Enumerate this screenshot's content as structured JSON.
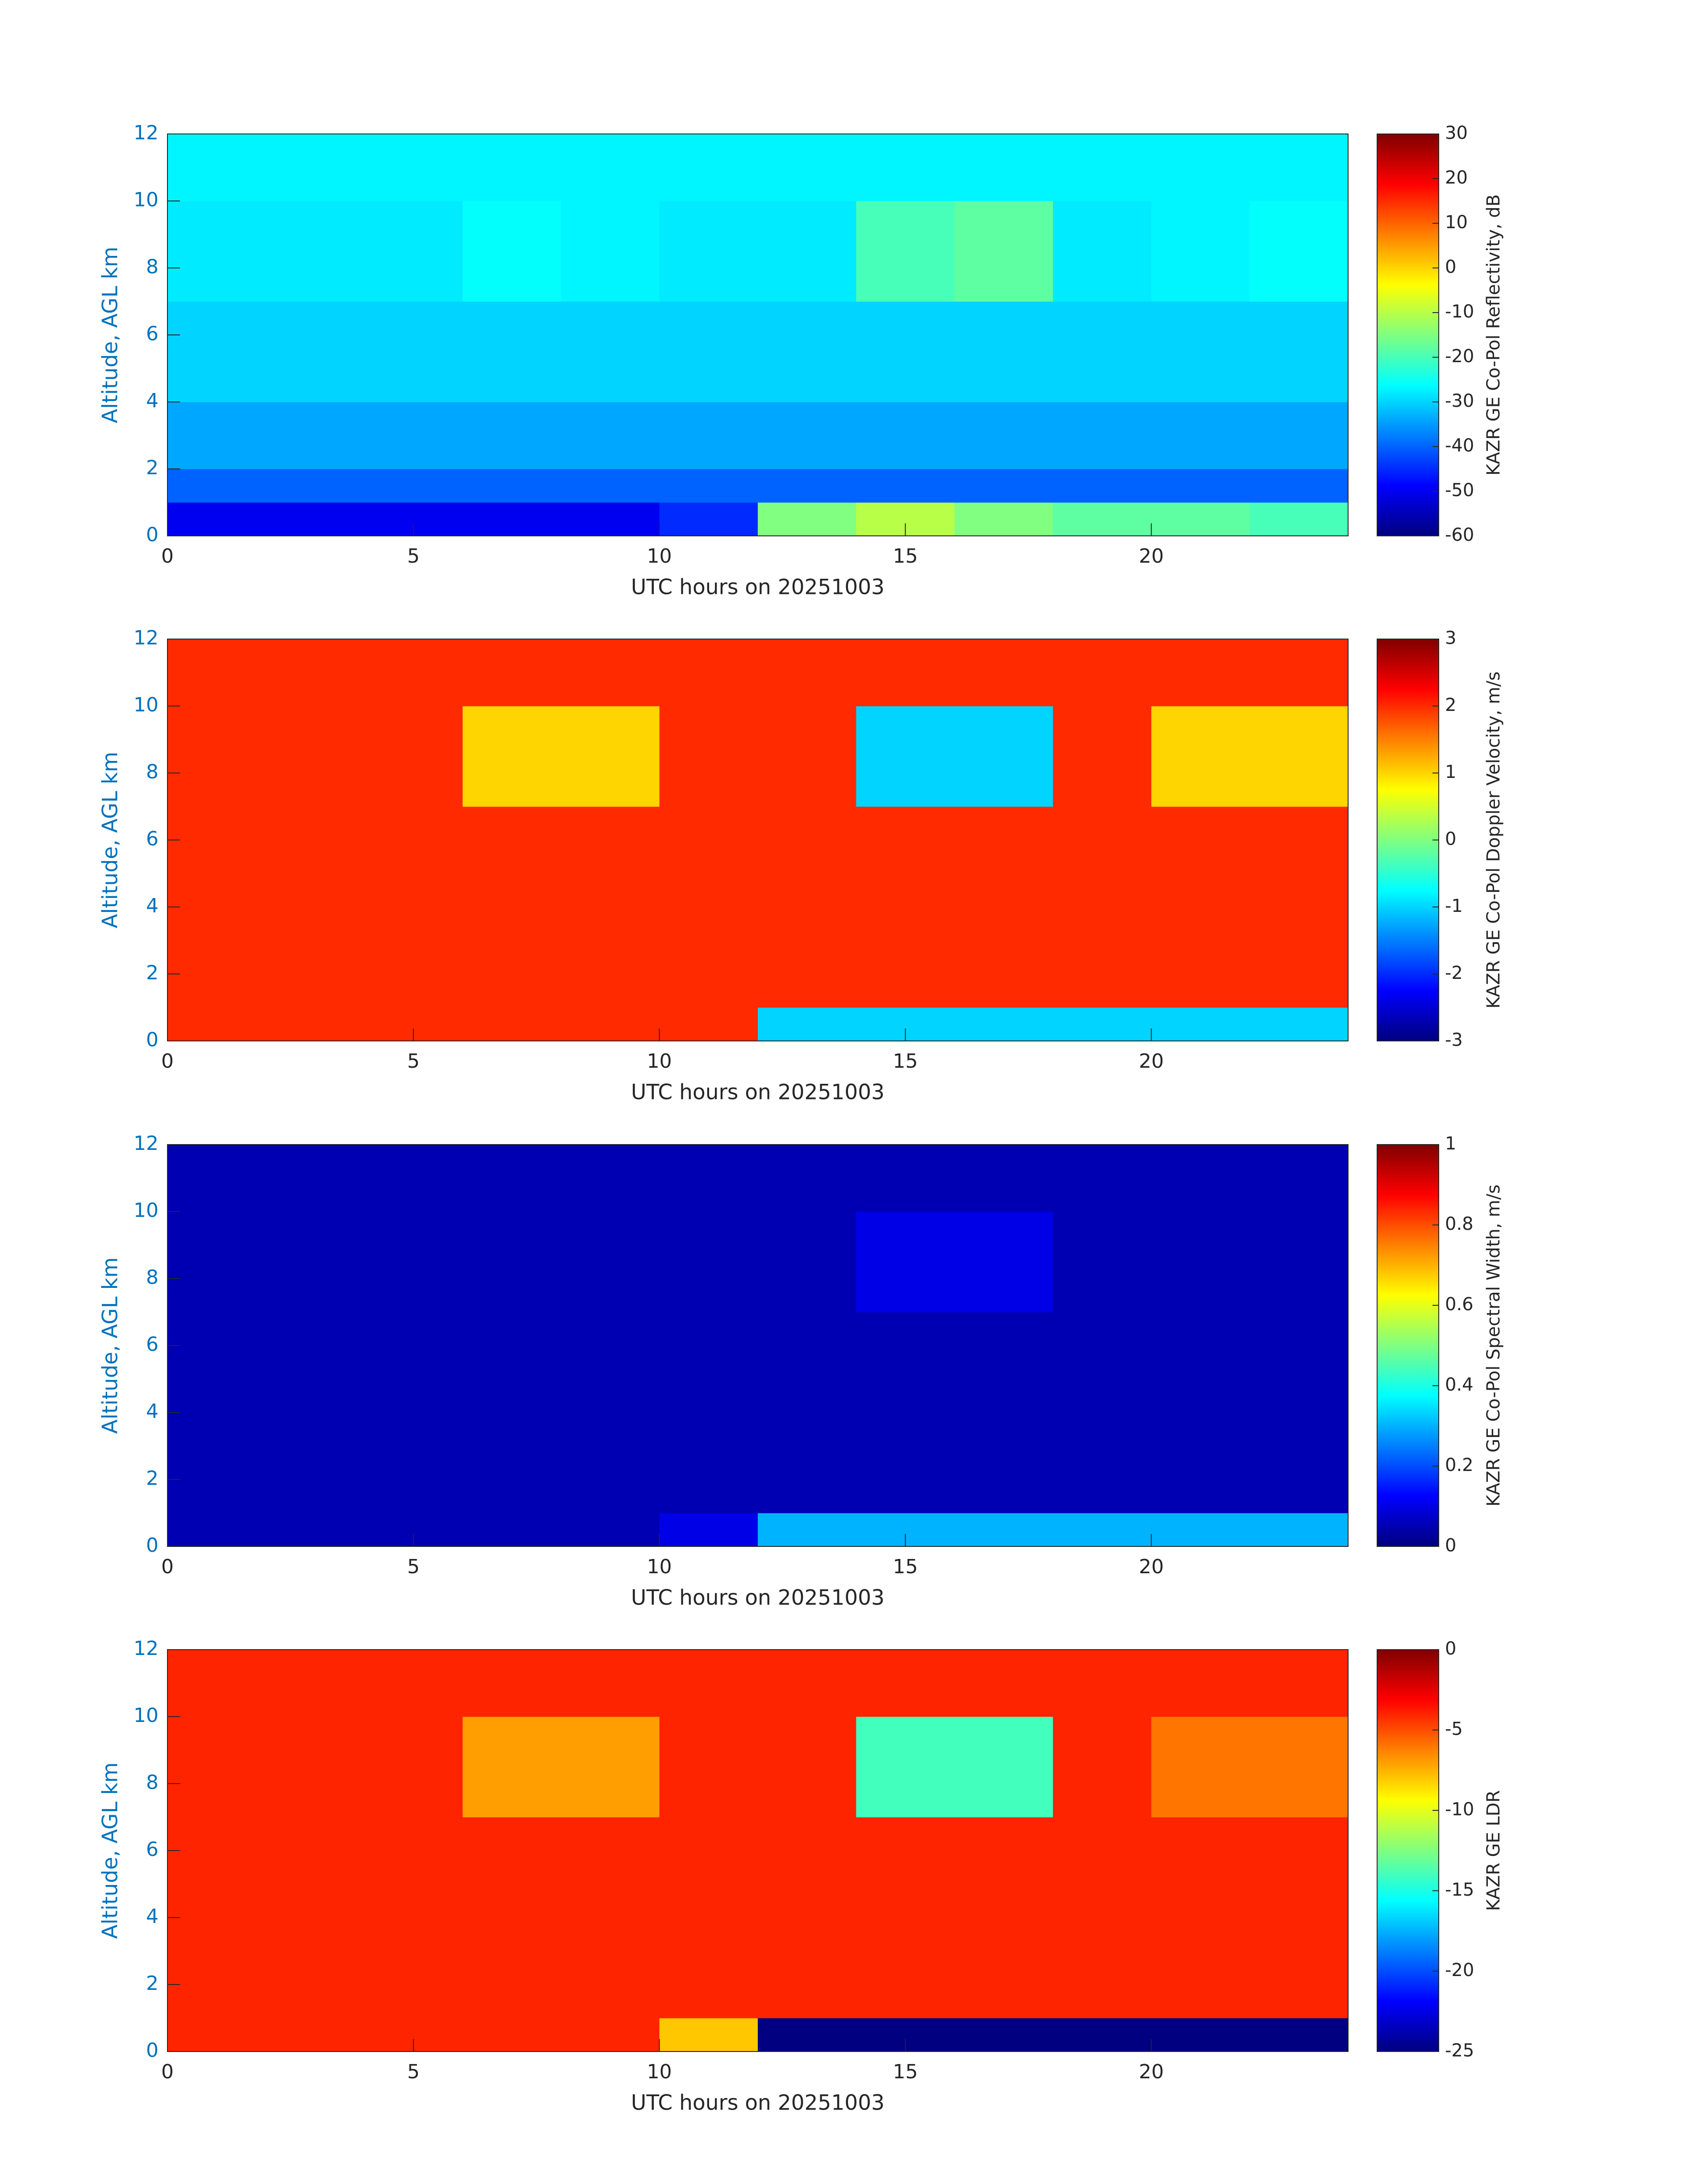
{
  "chart_data": [
    {
      "type": "heatmap",
      "colormap": "jet",
      "xlabel": "UTC hours on 20251003",
      "ylabel": "Altitude, AGL km",
      "colorbar_label": "KAZR GE Co-Pol Reflectivity, dB",
      "xlim": [
        0,
        24
      ],
      "xticks": [
        0,
        5,
        10,
        15,
        20
      ],
      "ylim": [
        0,
        12
      ],
      "yticks": [
        0,
        2,
        4,
        6,
        8,
        10,
        12
      ],
      "zlim": [
        -60,
        30
      ],
      "zticks": [
        -60,
        -50,
        -40,
        -30,
        -20,
        -10,
        0,
        10,
        20,
        30
      ],
      "x_bins": [
        0,
        2,
        4,
        6,
        8,
        10,
        12,
        14,
        16,
        18,
        20,
        22,
        24
      ],
      "y_bins": [
        0,
        1,
        2,
        4,
        7,
        10,
        12
      ],
      "values": [
        [
          -50,
          -50,
          -50,
          -50,
          -50,
          -45,
          -15,
          -10,
          -15,
          -18,
          -18,
          -20
        ],
        [
          -40,
          -40,
          -40,
          -40,
          -40,
          -40,
          -40,
          -40,
          -40,
          -40,
          -40,
          -40
        ],
        [
          -34,
          -34,
          -34,
          -34,
          -34,
          -34,
          -34,
          -34,
          -34,
          -34,
          -34,
          -34
        ],
        [
          -30,
          -30,
          -30,
          -30,
          -30,
          -30,
          -30,
          -30,
          -30,
          -30,
          -30,
          -30
        ],
        [
          -28,
          -28,
          -28,
          -26,
          -27,
          -28,
          -28,
          -20,
          -18,
          -28,
          -27,
          -26
        ],
        [
          -27,
          -27,
          -27,
          -27,
          -27,
          -27,
          -27,
          -27,
          -27,
          -27,
          -27,
          -27
        ]
      ]
    },
    {
      "type": "heatmap",
      "colormap": "jet",
      "xlabel": "UTC hours on 20251003",
      "ylabel": "Altitude, AGL km",
      "colorbar_label": "KAZR GE Co-Pol Doppler Velocity, m/s",
      "xlim": [
        0,
        24
      ],
      "xticks": [
        0,
        5,
        10,
        15,
        20
      ],
      "ylim": [
        0,
        12
      ],
      "yticks": [
        0,
        2,
        4,
        6,
        8,
        10,
        12
      ],
      "zlim": [
        -3,
        3
      ],
      "zticks": [
        -3,
        -2,
        -1,
        0,
        1,
        2,
        3
      ],
      "x_bins": [
        0,
        2,
        4,
        6,
        8,
        10,
        12,
        14,
        16,
        18,
        20,
        22,
        24
      ],
      "y_bins": [
        0,
        1,
        2,
        4,
        7,
        10,
        12
      ],
      "values": [
        [
          2,
          2,
          2,
          2,
          2,
          2,
          -1,
          -1,
          -1,
          -1,
          -1,
          -1
        ],
        [
          2,
          2,
          2,
          2,
          2,
          2,
          2,
          2,
          2,
          2,
          2,
          2
        ],
        [
          2,
          2,
          2,
          2,
          2,
          2,
          2,
          2,
          2,
          2,
          2,
          2
        ],
        [
          2,
          2,
          2,
          2,
          2,
          2,
          2,
          2,
          2,
          2,
          2,
          2
        ],
        [
          2,
          2,
          2,
          1,
          1,
          2,
          2,
          -1,
          -1,
          2,
          1,
          1
        ],
        [
          2,
          2,
          2,
          2,
          2,
          2,
          2,
          2,
          2,
          2,
          2,
          2
        ]
      ]
    },
    {
      "type": "heatmap",
      "colormap": "jet",
      "xlabel": "UTC hours on 20251003",
      "ylabel": "Altitude, AGL km",
      "colorbar_label": "KAZR GE Co-Pol Spectral Width, m/s",
      "xlim": [
        0,
        24
      ],
      "xticks": [
        0,
        5,
        10,
        15,
        20
      ],
      "ylim": [
        0,
        12
      ],
      "yticks": [
        0,
        2,
        4,
        6,
        8,
        10,
        12
      ],
      "zlim": [
        0,
        1
      ],
      "zticks": [
        0,
        0.2,
        0.4,
        0.6,
        0.8,
        1
      ],
      "x_bins": [
        0,
        2,
        4,
        6,
        8,
        10,
        12,
        14,
        16,
        18,
        20,
        22,
        24
      ],
      "y_bins": [
        0,
        1,
        2,
        4,
        7,
        10,
        12
      ],
      "values": [
        [
          0.05,
          0.05,
          0.05,
          0.05,
          0.05,
          0.1,
          0.3,
          0.3,
          0.3,
          0.3,
          0.3,
          0.3
        ],
        [
          0.05,
          0.05,
          0.05,
          0.05,
          0.05,
          0.05,
          0.05,
          0.05,
          0.05,
          0.05,
          0.05,
          0.05
        ],
        [
          0.05,
          0.05,
          0.05,
          0.05,
          0.05,
          0.05,
          0.05,
          0.05,
          0.05,
          0.05,
          0.05,
          0.05
        ],
        [
          0.05,
          0.05,
          0.05,
          0.05,
          0.05,
          0.05,
          0.05,
          0.05,
          0.05,
          0.05,
          0.05,
          0.05
        ],
        [
          0.05,
          0.05,
          0.05,
          0.05,
          0.05,
          0.05,
          0.05,
          0.1,
          0.1,
          0.05,
          0.05,
          0.05
        ],
        [
          0.05,
          0.05,
          0.05,
          0.05,
          0.05,
          0.05,
          0.05,
          0.05,
          0.05,
          0.05,
          0.05,
          0.05
        ]
      ]
    },
    {
      "type": "heatmap",
      "colormap": "jet",
      "xlabel": "UTC hours on 20251003",
      "ylabel": "Altitude, AGL km",
      "colorbar_label": "KAZR GE LDR",
      "xlim": [
        0,
        24
      ],
      "xticks": [
        0,
        5,
        10,
        15,
        20
      ],
      "ylim": [
        0,
        12
      ],
      "yticks": [
        0,
        2,
        4,
        6,
        8,
        10,
        12
      ],
      "zlim": [
        -25,
        0
      ],
      "zticks": [
        -25,
        -20,
        -15,
        -10,
        -5,
        0
      ],
      "x_bins": [
        0,
        2,
        4,
        6,
        8,
        10,
        12,
        14,
        16,
        18,
        20,
        22,
        24
      ],
      "y_bins": [
        0,
        1,
        2,
        4,
        7,
        10,
        12
      ],
      "values": [
        [
          -4,
          -4,
          -4,
          -4,
          -4,
          -8,
          -25,
          -25,
          -25,
          -25,
          -25,
          -25
        ],
        [
          -4,
          -4,
          -4,
          -4,
          -4,
          -4,
          -4,
          -4,
          -4,
          -4,
          -4,
          -4
        ],
        [
          -4,
          -4,
          -4,
          -4,
          -4,
          -4,
          -4,
          -4,
          -4,
          -4,
          -4,
          -4
        ],
        [
          -4,
          -4,
          -4,
          -4,
          -4,
          -4,
          -4,
          -4,
          -4,
          -4,
          -4,
          -4
        ],
        [
          -4,
          -4,
          -4,
          -7,
          -7,
          -4,
          -4,
          -14,
          -14,
          -4,
          -6,
          -6
        ],
        [
          -4,
          -4,
          -4,
          -4,
          -4,
          -4,
          -4,
          -4,
          -4,
          -4,
          -4,
          -4
        ]
      ]
    }
  ]
}
